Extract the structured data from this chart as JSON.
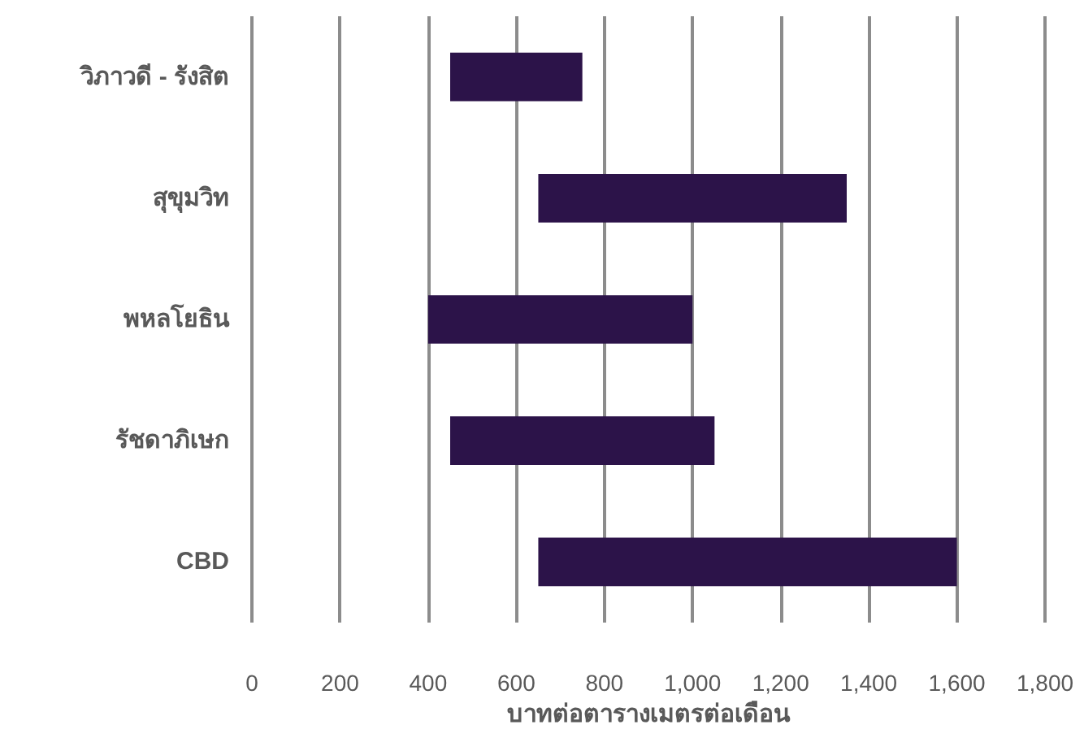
{
  "chart_data": {
    "type": "bar",
    "orientation": "horizontal",
    "xlabel": "บาทต่อตารางเมตรต่อเดือน",
    "categories": [
      "วิภาวดี - รังสิต",
      "สุขุมวิท",
      "พหลโยธิน",
      "รัชดาภิเษก",
      "CBD"
    ],
    "base": [
      450,
      650,
      400,
      450,
      650
    ],
    "values": [
      300,
      700,
      600,
      600,
      950
    ],
    "color": "#2c1349",
    "xlim": [
      0,
      1800
    ],
    "xticks": [
      {
        "value": 0,
        "label": "0"
      },
      {
        "value": 200,
        "label": "200"
      },
      {
        "value": 400,
        "label": "400"
      },
      {
        "value": 600,
        "label": "600"
      },
      {
        "value": 800,
        "label": "800"
      },
      {
        "value": 1000,
        "label": "1,000"
      },
      {
        "value": 1200,
        "label": "1,200"
      },
      {
        "value": 1400,
        "label": "1,400"
      },
      {
        "value": 1600,
        "label": "1,600"
      },
      {
        "value": 1800,
        "label": "1,800"
      }
    ],
    "grid": "x"
  }
}
